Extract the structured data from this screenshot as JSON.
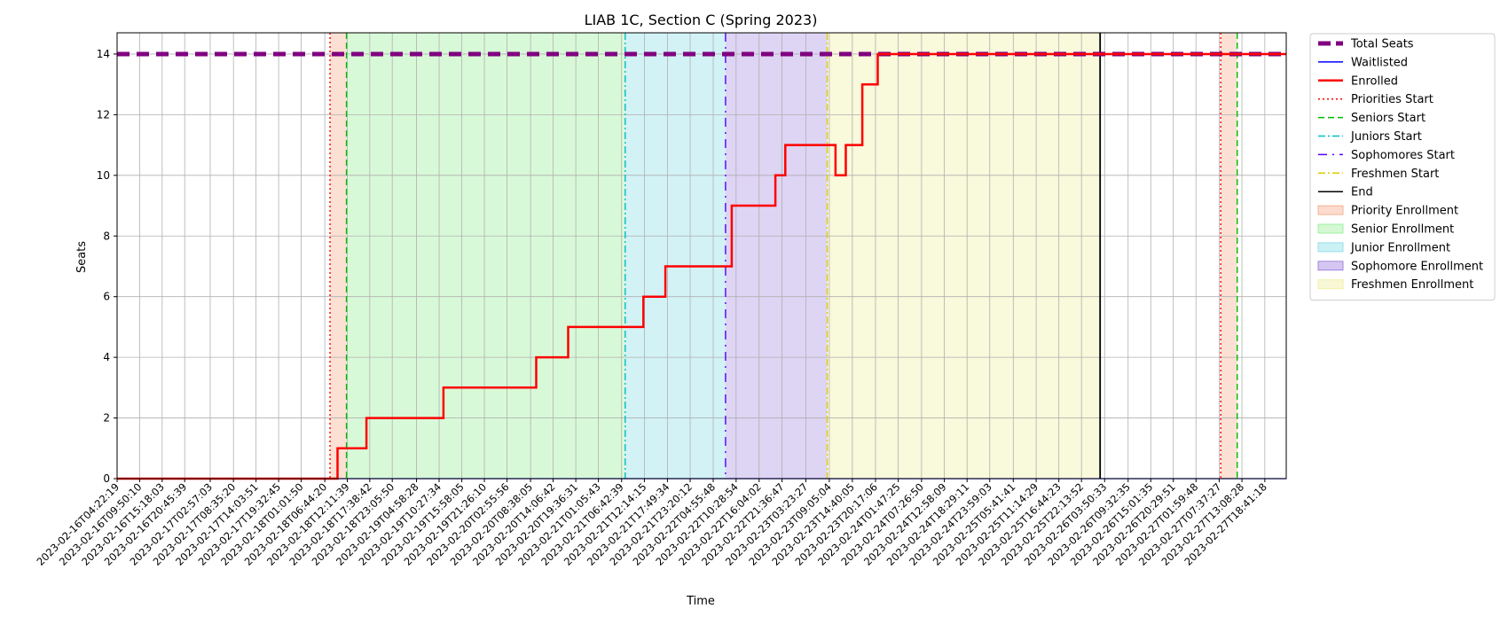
{
  "chart_data": {
    "type": "line",
    "title": "LIAB 1C, Section C (Spring 2023)",
    "xlabel": "Time",
    "ylabel": "Seats",
    "ylim": [
      0,
      14.7
    ],
    "yticks": [
      0,
      2,
      4,
      6,
      8,
      10,
      12,
      14
    ],
    "grid": true,
    "legend_position": "outside-right",
    "x_start": "2023-02-16T04:22:19",
    "x_end": "2023-02-27T23:53:00",
    "xticks": [
      "2023-02-16T04:22:19",
      "2023-02-16T09:50:10",
      "2023-02-16T15:18:03",
      "2023-02-16T20:45:39",
      "2023-02-17T02:57:03",
      "2023-02-17T08:35:20",
      "2023-02-17T14:03:51",
      "2023-02-17T19:32:45",
      "2023-02-18T01:01:50",
      "2023-02-18T06:44:20",
      "2023-02-18T12:11:39",
      "2023-02-18T17:38:42",
      "2023-02-18T23:05:50",
      "2023-02-19T04:58:28",
      "2023-02-19T10:27:34",
      "2023-02-19T15:58:05",
      "2023-02-19T21:26:10",
      "2023-02-20T02:55:56",
      "2023-02-20T08:38:05",
      "2023-02-20T14:06:42",
      "2023-02-20T19:36:31",
      "2023-02-21T01:05:43",
      "2023-02-21T06:42:39",
      "2023-02-21T12:14:15",
      "2023-02-21T17:49:34",
      "2023-02-21T23:20:12",
      "2023-02-22T04:55:48",
      "2023-02-22T10:28:54",
      "2023-02-22T16:04:02",
      "2023-02-22T21:36:47",
      "2023-02-23T03:23:27",
      "2023-02-23T09:05:04",
      "2023-02-23T14:40:05",
      "2023-02-23T20:17:06",
      "2023-02-24T01:47:25",
      "2023-02-24T07:26:50",
      "2023-02-24T12:58:09",
      "2023-02-24T18:29:11",
      "2023-02-24T23:59:03",
      "2023-02-25T05:41:41",
      "2023-02-25T11:14:29",
      "2023-02-25T16:44:23",
      "2023-02-25T22:13:52",
      "2023-02-26T03:50:33",
      "2023-02-26T09:32:35",
      "2023-02-26T15:01:35",
      "2023-02-26T20:29:51",
      "2023-02-27T01:59:48",
      "2023-02-27T07:37:27",
      "2023-02-27T13:08:28",
      "2023-02-27T18:41:18"
    ],
    "series": [
      {
        "name": "Total Seats",
        "color": "#800080",
        "style": "dashed",
        "x": [
          "2023-02-16T04:22:19",
          "2023-02-27T23:53:00"
        ],
        "y": [
          14,
          14
        ]
      },
      {
        "name": "Waitlisted",
        "color": "#0000ff",
        "style": "solid",
        "x": [
          "2023-02-16T04:22:19",
          "2023-02-27T23:53:00"
        ],
        "y": [
          0,
          0
        ]
      },
      {
        "name": "Enrolled",
        "color": "#ff0000",
        "style": "solid",
        "x": [
          "2023-02-16T04:22:19",
          "2023-02-18T09:50:00",
          "2023-02-18T09:50:00",
          "2023-02-18T16:50:00",
          "2023-02-18T16:50:00",
          "2023-02-19T11:30:00",
          "2023-02-19T11:30:00",
          "2023-02-20T10:00:00",
          "2023-02-20T10:00:00",
          "2023-02-20T17:45:00",
          "2023-02-20T17:45:00",
          "2023-02-21T12:00:00",
          "2023-02-21T12:00:00",
          "2023-02-21T17:20:00",
          "2023-02-21T17:20:00",
          "2023-02-22T09:25:00",
          "2023-02-22T09:25:00",
          "2023-02-22T20:00:00",
          "2023-02-22T20:00:00",
          "2023-02-22T22:25:00",
          "2023-02-22T22:25:00",
          "2023-02-23T10:35:00",
          "2023-02-23T10:35:00",
          "2023-02-23T13:05:00",
          "2023-02-23T13:05:00",
          "2023-02-23T17:05:00",
          "2023-02-23T17:05:00",
          "2023-02-23T20:50:00",
          "2023-02-23T20:50:00",
          "2023-02-27T23:53:00"
        ],
        "y": [
          0,
          0,
          1,
          1,
          2,
          2,
          3,
          3,
          4,
          4,
          5,
          5,
          6,
          6,
          7,
          7,
          9,
          9,
          10,
          10,
          11,
          11,
          10,
          10,
          11,
          11,
          13,
          13,
          14,
          14
        ]
      }
    ],
    "vlines": [
      {
        "name": "Priorities Start",
        "x": "2023-02-18T08:00:00",
        "color": "#ff0000",
        "style": "dotted"
      },
      {
        "name": "Seniors Start",
        "x": "2023-02-18T12:00:00",
        "color": "#00bb00",
        "style": "dashed"
      },
      {
        "name": "Juniors Start",
        "x": "2023-02-21T07:35:00",
        "color": "#00bfbf",
        "style": "dashdot"
      },
      {
        "name": "Sophomores Start",
        "x": "2023-02-22T07:55:00",
        "color": "#5500ff",
        "style": "loosedashdot"
      },
      {
        "name": "Freshmen Start",
        "x": "2023-02-23T08:35:00",
        "color": "#ddcc00",
        "style": "dashdot"
      },
      {
        "name": "End",
        "x": "2023-02-26T02:45:00",
        "color": "#000000",
        "style": "solid"
      },
      {
        "name": "Priorities Start",
        "x": "2023-02-27T08:00:00",
        "color": "#ff0000",
        "style": "dotted"
      },
      {
        "name": "Seniors Start",
        "x": "2023-02-27T12:00:00",
        "color": "#00bb00",
        "style": "dashed"
      }
    ],
    "spans": [
      {
        "name": "Priority Enrollment",
        "x0": "2023-02-18T08:00:00",
        "x1": "2023-02-18T12:00:00",
        "color": "#f4a582",
        "opacity": 0.35
      },
      {
        "name": "Senior Enrollment",
        "x0": "2023-02-18T12:00:00",
        "x1": "2023-02-21T07:35:00",
        "color": "#90ee90",
        "opacity": 0.35
      },
      {
        "name": "Junior Enrollment",
        "x0": "2023-02-21T07:35:00",
        "x1": "2023-02-22T07:55:00",
        "color": "#7fdbe6",
        "opacity": 0.35
      },
      {
        "name": "Sophomore Enrollment",
        "x0": "2023-02-22T07:55:00",
        "x1": "2023-02-23T08:35:00",
        "color": "#9370db",
        "opacity": 0.3
      },
      {
        "name": "Freshmen Enrollment",
        "x0": "2023-02-23T08:35:00",
        "x1": "2023-02-26T02:45:00",
        "color": "#eeee99",
        "opacity": 0.35
      },
      {
        "name": "",
        "x0": "2023-02-27T08:00:00",
        "x1": "2023-02-27T12:00:00",
        "color": "#f4a582",
        "opacity": 0.35
      }
    ],
    "legend": [
      {
        "label": "Total Seats",
        "kind": "line",
        "color": "#800080",
        "style": "thickdash"
      },
      {
        "label": "Waitlisted",
        "kind": "line",
        "color": "#0000ff",
        "style": "solid"
      },
      {
        "label": "Enrolled",
        "kind": "line",
        "color": "#ff0000",
        "style": "thick"
      },
      {
        "label": "Priorities Start",
        "kind": "line",
        "color": "#ff0000",
        "style": "dotted"
      },
      {
        "label": "Seniors Start",
        "kind": "line",
        "color": "#00bb00",
        "style": "dashed"
      },
      {
        "label": "Juniors Start",
        "kind": "line",
        "color": "#00bfbf",
        "style": "dashdot"
      },
      {
        "label": "Sophomores Start",
        "kind": "line",
        "color": "#5500ff",
        "style": "loosedashdot"
      },
      {
        "label": "Freshmen Start",
        "kind": "line",
        "color": "#ddcc00",
        "style": "dashdot"
      },
      {
        "label": "End",
        "kind": "line",
        "color": "#000000",
        "style": "solid"
      },
      {
        "label": "Priority Enrollment",
        "kind": "patch",
        "color": "#f4a582"
      },
      {
        "label": "Senior Enrollment",
        "kind": "patch",
        "color": "#90ee90"
      },
      {
        "label": "Junior Enrollment",
        "kind": "patch",
        "color": "#7fdbe6"
      },
      {
        "label": "Sophomore Enrollment",
        "kind": "patch",
        "color": "#9370db"
      },
      {
        "label": "Freshmen Enrollment",
        "kind": "patch",
        "color": "#eeee99"
      }
    ]
  }
}
